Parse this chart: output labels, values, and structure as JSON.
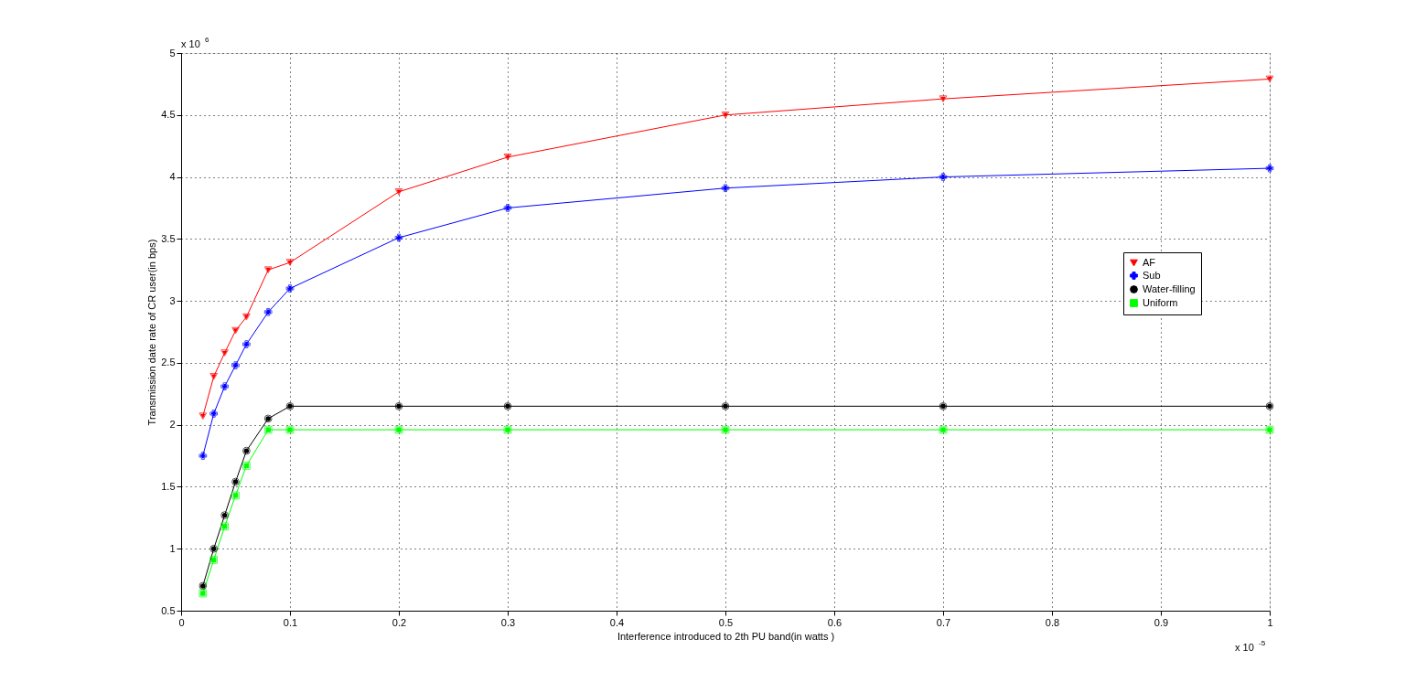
{
  "chart_data": {
    "type": "line",
    "xlabel": "Interference introduced to 2th PU band(in watts )",
    "ylabel": "Transmission date rate of CR user(in bps)",
    "x": [
      0.02,
      0.03,
      0.04,
      0.05,
      0.06,
      0.08,
      0.1,
      0.2,
      0.3,
      0.5,
      0.7,
      1.0
    ],
    "series": [
      {
        "name": "AF",
        "color": "#ff0000",
        "marker": "triangle",
        "values": [
          2.07,
          2.39,
          2.58,
          2.76,
          2.87,
          3.25,
          3.31,
          3.88,
          4.16,
          4.5,
          4.63,
          4.79
        ]
      },
      {
        "name": "Sub",
        "color": "#0000ff",
        "marker": "cross",
        "values": [
          1.75,
          2.09,
          2.31,
          2.48,
          2.65,
          2.91,
          3.1,
          3.51,
          3.75,
          3.91,
          4.0,
          4.07
        ]
      },
      {
        "name": "Water-filling",
        "color": "#000000",
        "marker": "circle",
        "values": [
          0.7,
          1.0,
          1.27,
          1.54,
          1.79,
          2.05,
          2.15,
          2.15,
          2.15,
          2.15,
          2.15,
          2.15
        ]
      },
      {
        "name": "Uniform",
        "color": "#00ff00",
        "marker": "square",
        "values": [
          0.64,
          0.91,
          1.18,
          1.43,
          1.67,
          1.96,
          1.96,
          1.96,
          1.96,
          1.96,
          1.96,
          1.96
        ]
      }
    ],
    "xlim": [
      0,
      1
    ],
    "xticks": [
      0,
      0.1,
      0.2,
      0.3,
      0.4,
      0.5,
      0.6,
      0.7,
      0.8,
      0.9,
      1
    ],
    "ylim": [
      0.5,
      5
    ],
    "yticks": [
      0.5,
      1,
      1.5,
      2,
      2.5,
      3,
      3.5,
      4,
      4.5,
      5
    ],
    "annotations": [
      "x 10$^{6}$",
      "x 10$^{-5}$"
    ],
    "grid": true,
    "legend": "right",
    "line_style": "solid"
  }
}
